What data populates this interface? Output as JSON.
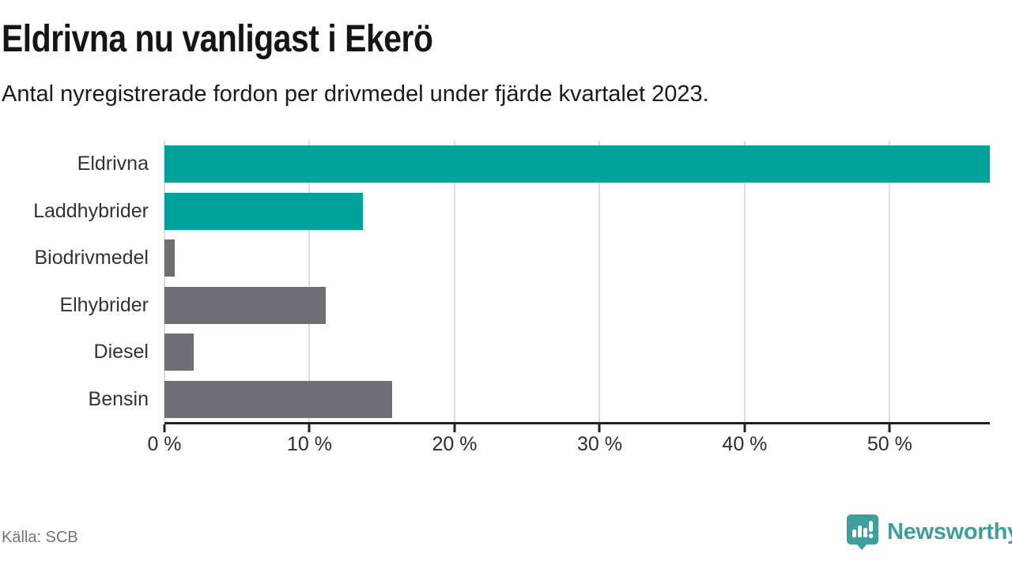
{
  "header": {
    "title": "Eldrivna nu vanligast i Ekerö",
    "subtitle": "Antal nyregistrerade fordon per drivmedel under fjärde kvartalet 2023."
  },
  "chart_data": {
    "type": "bar",
    "orientation": "horizontal",
    "title": "Eldrivna nu vanligast i Ekerö",
    "subtitle": "Antal nyregistrerade fordon per drivmedel under fjärde kvartalet 2023.",
    "categories": [
      "Eldrivna",
      "Laddhybrider",
      "Biodrivmedel",
      "Elhybrider",
      "Diesel",
      "Bensin"
    ],
    "values": [
      56.9,
      13.7,
      0.7,
      11.1,
      2.0,
      15.7
    ],
    "unit": "%",
    "xlabel": "",
    "ylabel": "",
    "xlim": [
      0,
      56.9
    ],
    "x_ticks": [
      {
        "value": 0,
        "label": "0 %"
      },
      {
        "value": 10,
        "label": "10 %"
      },
      {
        "value": 20,
        "label": "20 %"
      },
      {
        "value": 30,
        "label": "30 %"
      },
      {
        "value": 40,
        "label": "40 %"
      },
      {
        "value": 50,
        "label": "50 %"
      }
    ],
    "grid": "vertical-only",
    "legend": "none",
    "bar_color_keys": [
      "accent",
      "accent",
      "muted",
      "muted",
      "muted",
      "muted"
    ],
    "palette": {
      "accent": "#00a29b",
      "muted": "#6f6e75"
    }
  },
  "footer": {
    "source": "Källa: SCB",
    "brand": {
      "name": "Newsworthy",
      "color": "#3f9e9d",
      "icon": "speech-bubble-bar-chart-icon"
    }
  }
}
